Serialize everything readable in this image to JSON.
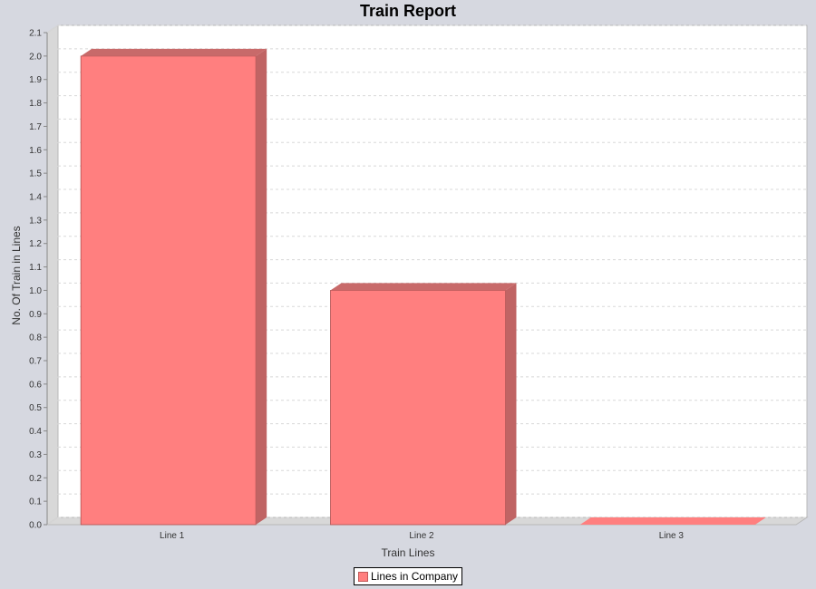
{
  "colors": {
    "bar_front": "#ff7f7f",
    "bar_side": "#c06464",
    "bar_top": "#c86a6a",
    "grid": "#d8d8d8",
    "wall": "#d8d8d8",
    "plot_bg": "#ffffff"
  },
  "chart_data": {
    "type": "bar",
    "title": "Train Report",
    "xlabel": "Train Lines",
    "ylabel": "No. Of Train in Lines",
    "categories": [
      "Line 1",
      "Line 2",
      "Line 3"
    ],
    "series": [
      {
        "name": "Lines in Company",
        "values": [
          2.0,
          1.0,
          0.0
        ]
      }
    ],
    "ylim": [
      0,
      2.1
    ],
    "yticks": [
      "0.0",
      "0.1",
      "0.2",
      "0.3",
      "0.4",
      "0.5",
      "0.6",
      "0.7",
      "0.8",
      "0.9",
      "1.0",
      "1.1",
      "1.2",
      "1.3",
      "1.4",
      "1.5",
      "1.6",
      "1.7",
      "1.8",
      "1.9",
      "2.0",
      "2.1"
    ],
    "grid": true,
    "legend_position": "bottom-center",
    "style": "3d"
  }
}
